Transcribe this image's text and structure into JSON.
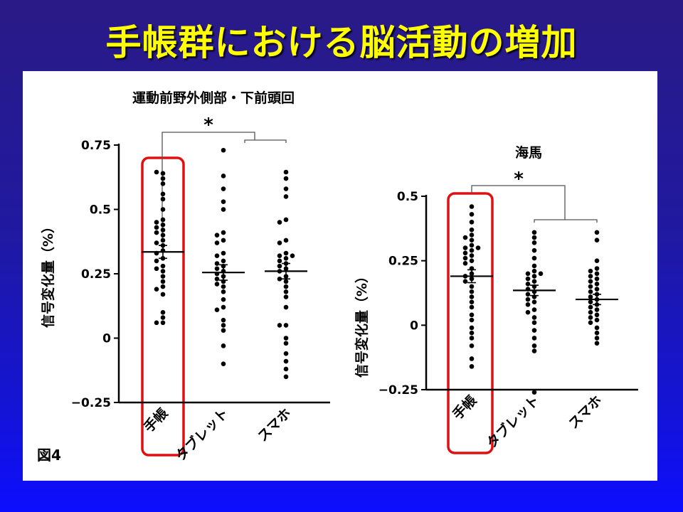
{
  "slide": {
    "title": "手帳群における脳活動の増加",
    "figure_label": "図4",
    "highlight_color": "#e01010",
    "title_color": "#ffff00"
  },
  "chart_data": [
    {
      "type": "scatter",
      "title": "運動前野外側部・下前頭回",
      "ylabel": "信号変化量（%）",
      "xlabel": "",
      "ylim": [
        -0.25,
        0.75
      ],
      "yticks": [
        "0.75",
        "0.5",
        "0.25",
        "0",
        "−0.25"
      ],
      "ytick_values": [
        0.75,
        0.5,
        0.25,
        0,
        -0.25
      ],
      "categories": [
        "手帳",
        "タブレット",
        "スマホ"
      ],
      "highlighted_category": "手帳",
      "significance": "*",
      "series": [
        {
          "mean": 0.335,
          "sem": 0.025,
          "values": [
            0.64,
            0.645,
            0.62,
            0.6,
            0.56,
            0.54,
            0.5,
            0.46,
            0.45,
            0.44,
            0.43,
            0.42,
            0.41,
            0.4,
            0.38,
            0.37,
            0.36,
            0.34,
            0.33,
            0.31,
            0.3,
            0.28,
            0.27,
            0.26,
            0.24,
            0.22,
            0.2,
            0.19,
            0.17,
            0.1,
            0.08,
            0.06,
            0.06
          ]
        },
        {
          "mean": 0.255,
          "sem": 0.03,
          "values": [
            0.73,
            0.63,
            0.58,
            0.53,
            0.5,
            0.41,
            0.4,
            0.38,
            0.37,
            0.33,
            0.32,
            0.3,
            0.29,
            0.28,
            0.27,
            0.26,
            0.25,
            0.24,
            0.23,
            0.22,
            0.21,
            0.2,
            0.18,
            0.15,
            0.12,
            0.11,
            0.07,
            0.05,
            0.03,
            -0.03,
            -0.1
          ]
        },
        {
          "mean": 0.26,
          "sem": 0.03,
          "values": [
            0.645,
            0.62,
            0.58,
            0.55,
            0.46,
            0.45,
            0.38,
            0.37,
            0.33,
            0.32,
            0.32,
            0.31,
            0.3,
            0.29,
            0.28,
            0.27,
            0.26,
            0.24,
            0.23,
            0.22,
            0.2,
            0.18,
            0.16,
            0.12,
            0.05,
            0.05,
            0.0,
            -0.02,
            -0.06,
            -0.09,
            -0.12,
            -0.15
          ]
        }
      ]
    },
    {
      "type": "scatter",
      "title": "海馬",
      "ylabel": "信号変化量（%）",
      "xlabel": "",
      "ylim": [
        -0.25,
        0.5
      ],
      "yticks": [
        "0.5",
        "0.25",
        "0",
        "−0.25"
      ],
      "ytick_values": [
        0.5,
        0.25,
        0,
        -0.25
      ],
      "categories": [
        "手帳",
        "タブレット",
        "スマホ"
      ],
      "highlighted_category": "手帳",
      "significance": "*",
      "series": [
        {
          "mean": 0.19,
          "sem": 0.025,
          "values": [
            0.46,
            0.43,
            0.4,
            0.37,
            0.35,
            0.34,
            0.33,
            0.31,
            0.3,
            0.3,
            0.29,
            0.28,
            0.27,
            0.26,
            0.25,
            0.24,
            0.22,
            0.2,
            0.19,
            0.18,
            0.17,
            0.15,
            0.13,
            0.11,
            0.09,
            0.07,
            0.04,
            0.02,
            -0.01,
            -0.03,
            -0.05,
            -0.08,
            -0.13,
            -0.16
          ]
        },
        {
          "mean": 0.135,
          "sem": 0.02,
          "values": [
            0.36,
            0.34,
            0.32,
            0.29,
            0.26,
            0.23,
            0.21,
            0.2,
            0.2,
            0.19,
            0.18,
            0.17,
            0.16,
            0.15,
            0.14,
            0.13,
            0.12,
            0.11,
            0.1,
            0.09,
            0.08,
            0.06,
            0.05,
            0.03,
            0.01,
            -0.02,
            -0.05,
            -0.08,
            -0.1,
            -0.26
          ]
        },
        {
          "mean": 0.1,
          "sem": 0.02,
          "values": [
            0.36,
            0.33,
            0.25,
            0.22,
            0.21,
            0.2,
            0.19,
            0.18,
            0.17,
            0.16,
            0.15,
            0.14,
            0.13,
            0.12,
            0.11,
            0.1,
            0.09,
            0.08,
            0.07,
            0.06,
            0.05,
            0.04,
            0.03,
            0.02,
            0.01,
            -0.01,
            -0.03,
            -0.05,
            -0.07
          ]
        }
      ]
    }
  ]
}
